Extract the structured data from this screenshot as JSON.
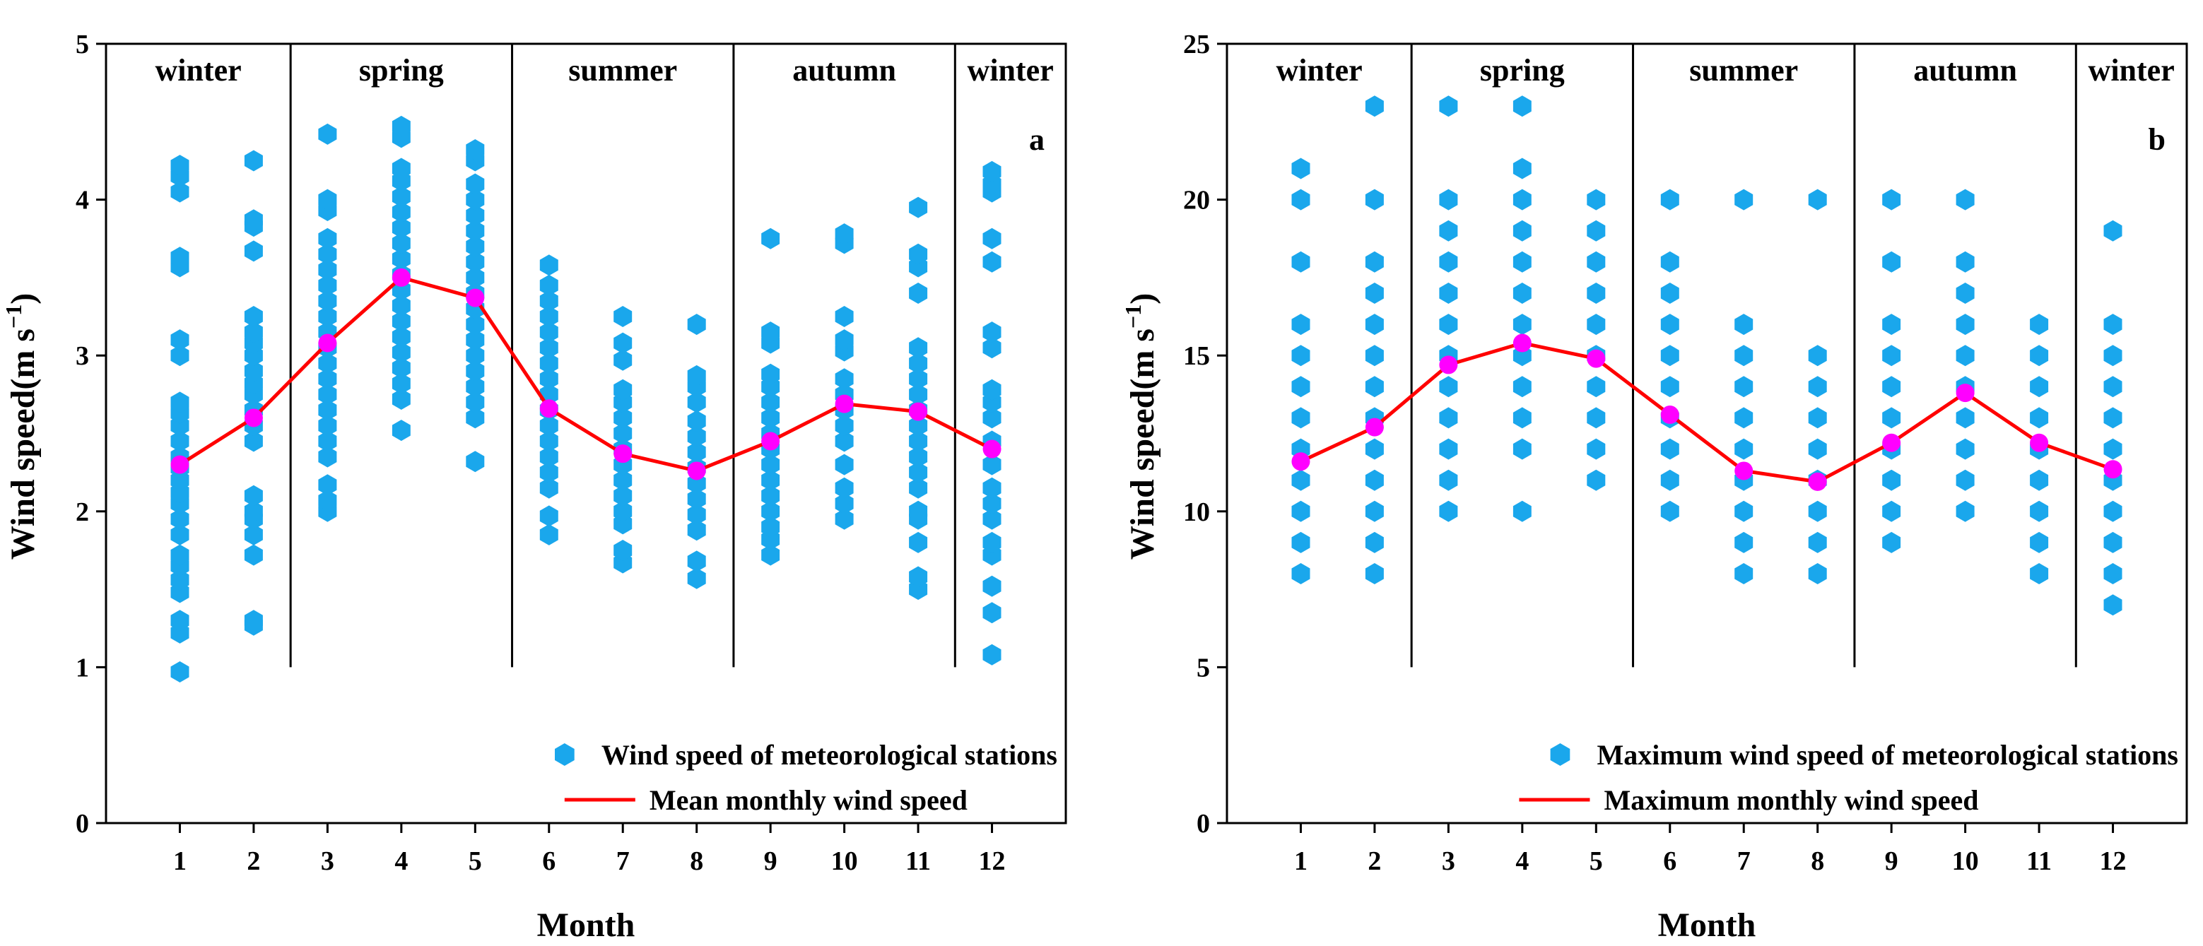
{
  "chart_data": [
    {
      "type": "scatter",
      "panel_label": "a",
      "ylabel": "Wind speed(m s",
      "ylabel_unit_sup": "−1",
      "ylabel_close": ")",
      "xlabel": "Month",
      "xlim": [
        0,
        13
      ],
      "ylim": [
        0,
        5
      ],
      "yticks": [
        0,
        1,
        2,
        3,
        4,
        5
      ],
      "ytick_labels": [
        "0",
        "1",
        "2",
        "3",
        "4",
        "5"
      ],
      "xticks": [
        1,
        2,
        3,
        4,
        5,
        6,
        7,
        8,
        9,
        10,
        11,
        12
      ],
      "xtick_labels": [
        "1",
        "2",
        "3",
        "4",
        "5",
        "6",
        "7",
        "8",
        "9",
        "10",
        "11",
        "12"
      ],
      "seasons": [
        {
          "label": "winter",
          "from": 0,
          "to": 2.5
        },
        {
          "label": "spring",
          "from": 2.5,
          "to": 5.5
        },
        {
          "label": "summer",
          "from": 5.5,
          "to": 8.5
        },
        {
          "label": "autumn",
          "from": 8.5,
          "to": 11.5
        },
        {
          "label": "winter",
          "from": 11.5,
          "to": 13
        }
      ],
      "season_dividers_from_y": 1.0,
      "grid": false,
      "legend_position": "bottom-right",
      "colors": {
        "points": "#1aa7ec",
        "line": "#ff0000",
        "mean_marker": "#ff00ff"
      },
      "series": [
        {
          "name": "Wind speed of meteorological stations",
          "kind": "points",
          "points": [
            [
              1,
              [
                0.97,
                1.22,
                1.3,
                1.48,
                1.56,
                1.65,
                1.72,
                1.85,
                1.95,
                2.05,
                2.12,
                2.2,
                2.28,
                2.35,
                2.45,
                2.55,
                2.63,
                2.7,
                3.0,
                3.1,
                3.57,
                3.63,
                4.05,
                4.15,
                4.22
              ]
            ],
            [
              2,
              [
                1.27,
                1.3,
                1.72,
                1.85,
                1.95,
                2.0,
                2.1,
                2.45,
                2.55,
                2.65,
                2.75,
                2.82,
                2.9,
                3.0,
                3.08,
                3.15,
                3.25,
                3.67,
                3.83,
                3.87,
                4.25
              ]
            ],
            [
              3,
              [
                2.0,
                2.07,
                2.17,
                2.35,
                2.45,
                2.55,
                2.65,
                2.75,
                2.85,
                2.95,
                3.05,
                3.15,
                3.25,
                3.35,
                3.45,
                3.55,
                3.65,
                3.75,
                3.93,
                4.0,
                4.42
              ]
            ],
            [
              4,
              [
                2.52,
                2.72,
                2.82,
                2.92,
                3.02,
                3.12,
                3.22,
                3.32,
                3.42,
                3.52,
                3.62,
                3.72,
                3.82,
                3.92,
                4.02,
                4.12,
                4.2,
                4.4,
                4.47
              ]
            ],
            [
              5,
              [
                2.32,
                2.6,
                2.7,
                2.8,
                2.9,
                3.0,
                3.1,
                3.2,
                3.3,
                3.4,
                3.5,
                3.6,
                3.7,
                3.8,
                3.9,
                4.0,
                4.1,
                4.25,
                4.32
              ]
            ],
            [
              6,
              [
                1.85,
                1.97,
                2.15,
                2.25,
                2.35,
                2.45,
                2.55,
                2.65,
                2.75,
                2.85,
                2.95,
                3.05,
                3.15,
                3.25,
                3.35,
                3.45,
                3.58
              ]
            ],
            [
              7,
              [
                1.67,
                1.75,
                1.92,
                2.0,
                2.1,
                2.2,
                2.3,
                2.4,
                2.5,
                2.6,
                2.7,
                2.78,
                2.97,
                3.08,
                3.25
              ]
            ],
            [
              8,
              [
                1.57,
                1.68,
                1.88,
                1.98,
                2.08,
                2.18,
                2.28,
                2.38,
                2.48,
                2.58,
                2.7,
                2.8,
                2.87,
                3.2
              ]
            ],
            [
              9,
              [
                1.72,
                1.82,
                1.9,
                2.0,
                2.1,
                2.2,
                2.3,
                2.4,
                2.5,
                2.6,
                2.7,
                2.8,
                2.88,
                3.08,
                3.15,
                3.75
              ]
            ],
            [
              10,
              [
                1.95,
                2.05,
                2.15,
                2.3,
                2.45,
                2.55,
                2.65,
                2.75,
                2.85,
                3.03,
                3.1,
                3.25,
                3.72,
                3.78
              ]
            ],
            [
              11,
              [
                1.5,
                1.58,
                1.8,
                1.95,
                2.0,
                2.15,
                2.25,
                2.35,
                2.45,
                2.55,
                2.65,
                2.75,
                2.85,
                2.95,
                3.05,
                3.4,
                3.57,
                3.65,
                3.95
              ]
            ],
            [
              12,
              [
                1.08,
                1.35,
                1.52,
                1.72,
                1.8,
                1.95,
                2.05,
                2.15,
                2.3,
                2.45,
                2.6,
                2.7,
                2.78,
                3.05,
                3.15,
                3.6,
                3.75,
                4.05,
                4.1,
                4.18
              ]
            ]
          ]
        },
        {
          "name": "Mean monthly wind speed",
          "kind": "line",
          "x": [
            1,
            2,
            3,
            4,
            5,
            6,
            7,
            8,
            9,
            10,
            11,
            12
          ],
          "y": [
            2.3,
            2.6,
            3.08,
            3.5,
            3.37,
            2.66,
            2.37,
            2.26,
            2.45,
            2.69,
            2.64,
            2.4
          ]
        }
      ]
    },
    {
      "type": "scatter",
      "panel_label": "b",
      "ylabel": "Wind speed(m s",
      "ylabel_unit_sup": "−1",
      "ylabel_close": ")",
      "xlabel": "Month",
      "xlim": [
        0,
        13
      ],
      "ylim": [
        0,
        25
      ],
      "yticks": [
        0,
        5,
        10,
        15,
        20,
        25
      ],
      "ytick_labels": [
        "0",
        "5",
        "10",
        "15",
        "20",
        "25"
      ],
      "xticks": [
        1,
        2,
        3,
        4,
        5,
        6,
        7,
        8,
        9,
        10,
        11,
        12
      ],
      "xtick_labels": [
        "1",
        "2",
        "3",
        "4",
        "5",
        "6",
        "7",
        "8",
        "9",
        "10",
        "11",
        "12"
      ],
      "seasons": [
        {
          "label": "winter",
          "from": 0,
          "to": 2.5
        },
        {
          "label": "spring",
          "from": 2.5,
          "to": 5.5
        },
        {
          "label": "summer",
          "from": 5.5,
          "to": 8.5
        },
        {
          "label": "autumn",
          "from": 8.5,
          "to": 11.5
        },
        {
          "label": "winter",
          "from": 11.5,
          "to": 13
        }
      ],
      "season_dividers_from_y": 5.0,
      "grid": false,
      "legend_position": "bottom-right",
      "colors": {
        "points": "#1aa7ec",
        "line": "#ff0000",
        "mean_marker": "#ff00ff"
      },
      "series": [
        {
          "name": "Maximum wind speed of meteorological stations",
          "kind": "points",
          "points": [
            [
              1,
              [
                8,
                9,
                10,
                11,
                12,
                13,
                14,
                15,
                16,
                18,
                20,
                21
              ]
            ],
            [
              2,
              [
                8,
                9,
                10,
                11,
                12,
                13,
                14,
                15,
                16,
                17,
                18,
                20,
                23
              ]
            ],
            [
              3,
              [
                10,
                11,
                12,
                13,
                14,
                15,
                16,
                17,
                18,
                19,
                20,
                23
              ]
            ],
            [
              4,
              [
                10,
                12,
                13,
                14,
                15,
                16,
                17,
                18,
                19,
                20,
                21,
                23
              ]
            ],
            [
              5,
              [
                11,
                12,
                13,
                14,
                15,
                16,
                17,
                18,
                19,
                20
              ]
            ],
            [
              6,
              [
                10,
                11,
                12,
                13,
                14,
                15,
                16,
                17,
                18,
                20
              ]
            ],
            [
              7,
              [
                8,
                9,
                10,
                11,
                12,
                13,
                14,
                15,
                16,
                20
              ]
            ],
            [
              8,
              [
                8,
                9,
                10,
                11,
                12,
                13,
                14,
                15,
                20
              ]
            ],
            [
              9,
              [
                9,
                10,
                11,
                12,
                13,
                14,
                15,
                16,
                18,
                20
              ]
            ],
            [
              10,
              [
                10,
                11,
                12,
                13,
                14,
                15,
                16,
                17,
                18,
                20
              ]
            ],
            [
              11,
              [
                8,
                9,
                10,
                11,
                12,
                13,
                14,
                15,
                16
              ]
            ],
            [
              12,
              [
                7,
                8,
                9,
                10,
                11,
                12,
                13,
                14,
                15,
                16,
                19
              ]
            ]
          ]
        },
        {
          "name": "Maximum monthly wind speed",
          "kind": "line",
          "x": [
            1,
            2,
            3,
            4,
            5,
            6,
            7,
            8,
            9,
            10,
            11,
            12
          ],
          "y": [
            11.6,
            12.7,
            14.7,
            15.4,
            14.9,
            13.1,
            11.3,
            10.95,
            12.2,
            13.8,
            12.2,
            11.35
          ]
        }
      ]
    }
  ]
}
